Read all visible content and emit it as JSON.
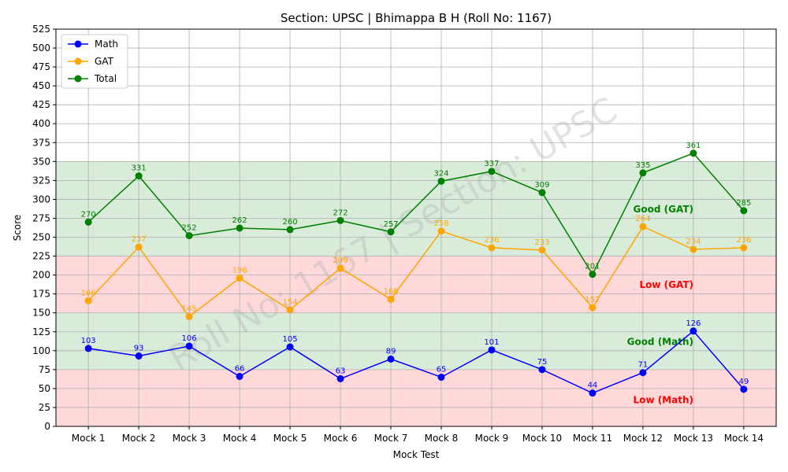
{
  "chart_data": {
    "type": "line",
    "title": "Section: UPSC | Bhimappa B H (Roll No: 1167)",
    "xlabel": "Mock Test",
    "ylabel": "Score",
    "ylim": [
      0,
      525
    ],
    "yticks": [
      0,
      25,
      50,
      75,
      100,
      125,
      150,
      175,
      200,
      225,
      250,
      275,
      300,
      325,
      350,
      375,
      400,
      425,
      450,
      475,
      500,
      525
    ],
    "grid": true,
    "legend_position": "top-left",
    "categories": [
      "Mock 1",
      "Mock 2",
      "Mock 3",
      "Mock 4",
      "Mock 5",
      "Mock 6",
      "Mock 7",
      "Mock 8",
      "Mock 9",
      "Mock 10",
      "Mock 11",
      "Mock 12",
      "Mock 13",
      "Mock 14"
    ],
    "series": [
      {
        "name": "Math",
        "color": "#0000ff",
        "values": [
          103,
          93,
          106,
          66,
          105,
          63,
          89,
          65,
          101,
          75,
          44,
          71,
          126,
          49
        ]
      },
      {
        "name": "GAT",
        "color": "#ffa500",
        "values": [
          166,
          237,
          145,
          196,
          154,
          209,
          168,
          258,
          236,
          233,
          157,
          264,
          234,
          236
        ]
      },
      {
        "name": "Total",
        "color": "#008000",
        "values": [
          270,
          331,
          252,
          262,
          260,
          272,
          257,
          324,
          337,
          309,
          201,
          335,
          361,
          285
        ]
      }
    ],
    "bands": [
      {
        "label": "Low (Math)",
        "from": 0,
        "to": 75,
        "fill": "#ffd9d9",
        "text_color": "#ff0000",
        "label_y": 35
      },
      {
        "label": "Good (Math)",
        "from": 75,
        "to": 150,
        "fill": "#d9ebd9",
        "text_color": "#008000",
        "label_y": 112
      },
      {
        "label": "Low (GAT)",
        "from": 150,
        "to": 225,
        "fill": "#ffd9d9",
        "text_color": "#ff0000",
        "label_y": 187
      },
      {
        "label": "Good (GAT)",
        "from": 225,
        "to": 350,
        "fill": "#d9ebd9",
        "text_color": "#008000",
        "label_y": 287
      }
    ],
    "watermark": "Roll No: 1167 | Section: UPSC"
  }
}
